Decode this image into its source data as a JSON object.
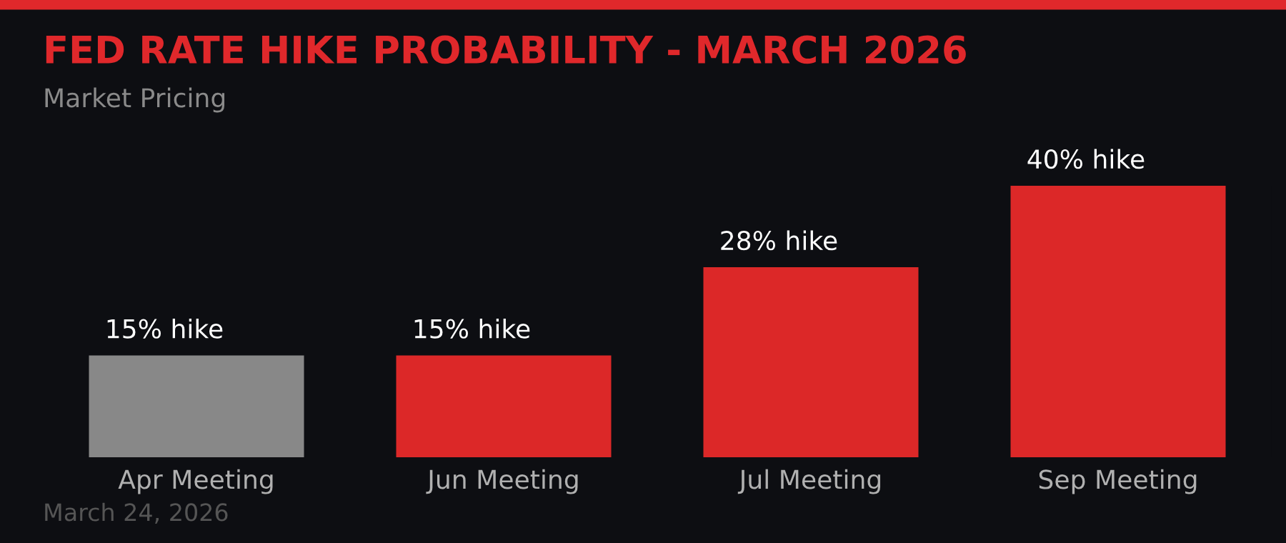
{
  "chart_data": {
    "type": "bar",
    "title": "FED RATE HIKE PROBABILITY - MARCH 2026",
    "subtitle": "Market Pricing",
    "categories": [
      "Apr Meeting",
      "Jun Meeting",
      "Jul Meeting",
      "Sep Meeting"
    ],
    "values": [
      15,
      15,
      28,
      40
    ],
    "colors": [
      "#888888",
      "#dc2828",
      "#dc2828",
      "#dc2828"
    ],
    "value_labels": [
      "15% hike",
      "15% hike",
      "28% hike",
      "40% hike"
    ],
    "annotations": [
      "March 24, 2026"
    ]
  }
}
